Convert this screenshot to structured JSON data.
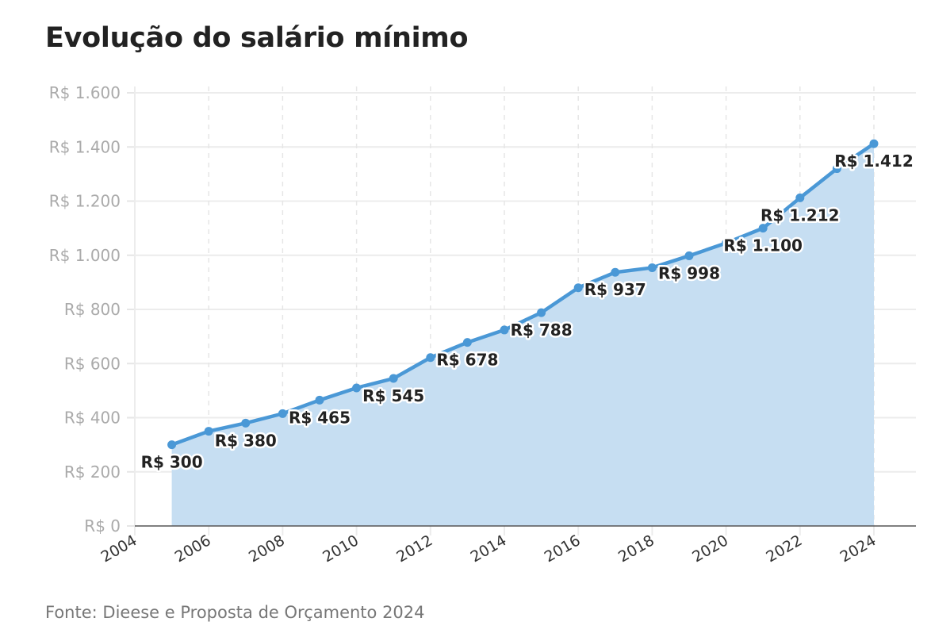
{
  "chart_data": {
    "type": "area",
    "title": "Evolução do salário mínimo",
    "source": "Fonte: Dieese e Proposta de Orçamento 2024",
    "xlabel": "",
    "ylabel": "",
    "xlim": [
      2004,
      2025
    ],
    "ylim": [
      0,
      1600
    ],
    "grid": true,
    "x": [
      2005,
      2006,
      2007,
      2008,
      2009,
      2010,
      2011,
      2012,
      2013,
      2014,
      2015,
      2016,
      2017,
      2018,
      2019,
      2020,
      2021,
      2022,
      2023,
      2024
    ],
    "values": [
      300,
      350,
      380,
      415,
      465,
      510,
      545,
      622,
      678,
      724,
      788,
      880,
      937,
      954,
      998,
      1045,
      1100,
      1212,
      1320,
      1412
    ],
    "x_ticks": [
      "2004",
      "2006",
      "2008",
      "2010",
      "2012",
      "2014",
      "2016",
      "2018",
      "2020",
      "2022",
      "2024"
    ],
    "y_ticks": [
      {
        "value": 0,
        "label": "R$ 0"
      },
      {
        "value": 200,
        "label": "R$ 200"
      },
      {
        "value": 400,
        "label": "R$ 400"
      },
      {
        "value": 600,
        "label": "R$ 600"
      },
      {
        "value": 800,
        "label": "R$ 800"
      },
      {
        "value": 1000,
        "label": "R$ 1.000"
      },
      {
        "value": 1200,
        "label": "R$ 1.200"
      },
      {
        "value": 1400,
        "label": "R$ 1.400"
      },
      {
        "value": 1600,
        "label": "R$ 1.600"
      }
    ],
    "data_labels": [
      {
        "x": 2005,
        "text": "R$ 300"
      },
      {
        "x": 2007,
        "text": "R$ 380"
      },
      {
        "x": 2009,
        "text": "R$ 465"
      },
      {
        "x": 2011,
        "text": "R$ 545"
      },
      {
        "x": 2013,
        "text": "R$ 678"
      },
      {
        "x": 2015,
        "text": "R$ 788"
      },
      {
        "x": 2017,
        "text": "R$ 937"
      },
      {
        "x": 2019,
        "text": "R$ 998"
      },
      {
        "x": 2021,
        "text": "R$ 1.100"
      },
      {
        "x": 2022,
        "text": "R$ 1.212"
      },
      {
        "x": 2024,
        "text": "R$ 1.412"
      }
    ],
    "colors": {
      "line": "#4a98d6",
      "area": "#c6def2"
    }
  }
}
